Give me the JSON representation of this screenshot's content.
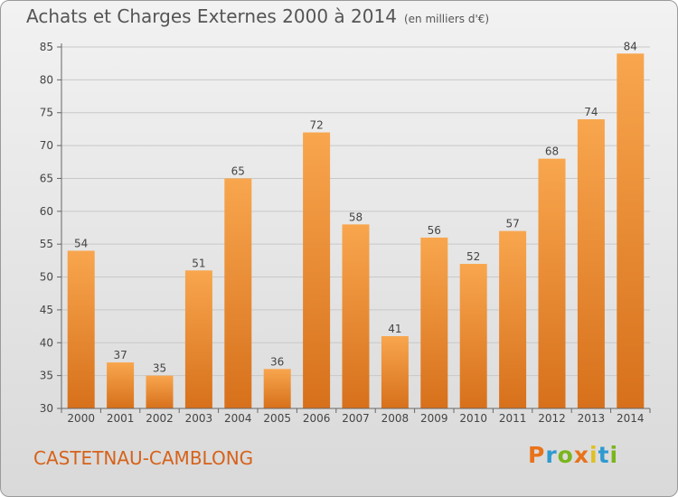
{
  "header": {
    "title": "Achats et Charges Externes 2000 à 2014",
    "unit": "(en milliers d'€)"
  },
  "footer": {
    "commune": "CASTETNAU-CAMBLONG",
    "brand": "Proxiti",
    "brand_colors": [
      "#e8731a",
      "#2e9ad0",
      "#7ab51d",
      "#e8731a",
      "#e0c020",
      "#2e9ad0",
      "#7ab51d"
    ]
  },
  "chart_data": {
    "type": "bar",
    "title": "Achats et Charges Externes 2000 à 2014",
    "xlabel": "",
    "ylabel": "",
    "categories": [
      "2000",
      "2001",
      "2002",
      "2003",
      "2004",
      "2005",
      "2006",
      "2007",
      "2008",
      "2009",
      "2010",
      "2011",
      "2012",
      "2013",
      "2014"
    ],
    "values": [
      54,
      37,
      35,
      51,
      65,
      36,
      72,
      58,
      41,
      56,
      52,
      57,
      68,
      74,
      84
    ],
    "ylim": [
      30,
      85
    ],
    "yticks": [
      30,
      35,
      40,
      45,
      50,
      55,
      60,
      65,
      70,
      75,
      80,
      85
    ],
    "grid": true,
    "legend": "none",
    "bar_color_top": "#f8a64e",
    "bar_color_bottom": "#d7701b"
  }
}
